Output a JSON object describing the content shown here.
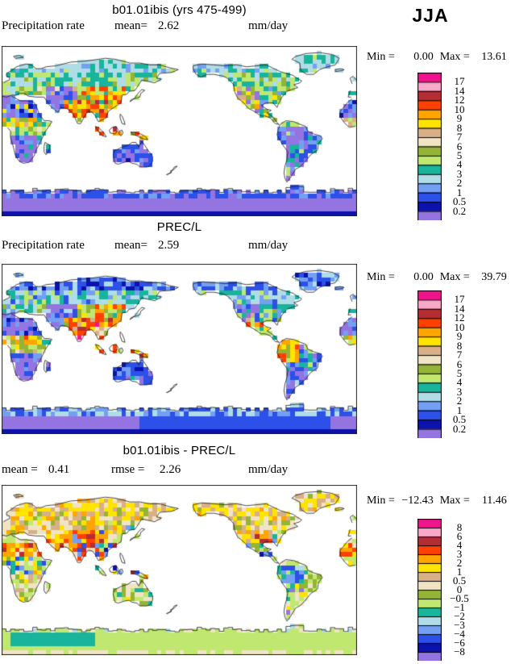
{
  "season_label": "JJA",
  "panels": [
    {
      "title": "b01.01ibis (yrs 475-499)",
      "var_label": "Precipitation rate",
      "mean_label": "mean=",
      "mean_value": "2.62",
      "units": "mm/day",
      "min_label": "Min =",
      "min_value": "0.00",
      "max_label": "Max =",
      "max_value": "13.61",
      "levels": [
        "17",
        "14",
        "12",
        "10",
        "9",
        "8",
        "7",
        "6",
        "5",
        "4",
        "3",
        "2",
        "1",
        "0.5",
        "0.2"
      ]
    },
    {
      "title": "PREC/L",
      "var_label": "Precipitation rate",
      "mean_label": "mean=",
      "mean_value": "2.59",
      "units": "mm/day",
      "min_label": "Min =",
      "min_value": "0.00",
      "max_label": "Max =",
      "max_value": "39.79",
      "levels": [
        "17",
        "14",
        "12",
        "10",
        "9",
        "8",
        "7",
        "6",
        "5",
        "4",
        "3",
        "2",
        "1",
        "0.5",
        "0.2"
      ]
    },
    {
      "title": "b01.01ibis - PREC/L",
      "mean_label": "mean =",
      "mean_value": "0.41",
      "rmse_label": "rmse =",
      "rmse_value": "2.26",
      "units": "mm/day",
      "min_label": "Min =",
      "min_value": "−12.43",
      "max_label": "Max =",
      "max_value": "11.46",
      "levels": [
        "8",
        "6",
        "4",
        "3",
        "2",
        "1",
        "0.5",
        "0",
        "−0.5",
        "−1",
        "−2",
        "−3",
        "−4",
        "−6",
        "−8"
      ]
    }
  ],
  "palette": {
    "names": [
      "magenta",
      "pink",
      "dark-red",
      "red-orange",
      "orange",
      "yellow",
      "tan",
      "beige",
      "olive-green",
      "light-green",
      "teal",
      "pale-blue",
      "cornflower-blue",
      "blue",
      "navy",
      "purple"
    ],
    "colors": [
      "#f0148c",
      "#f8a8c8",
      "#b42c34",
      "#ff4000",
      "#ffa400",
      "#ffe400",
      "#d8b088",
      "#f0e4c4",
      "#94b438",
      "#c0e870",
      "#18b49c",
      "#b0dce8",
      "#74a0f4",
      "#2c50e8",
      "#0c12ac",
      "#9474e0"
    ]
  },
  "chart_data": [
    {
      "type": "heatmap",
      "title": "b01.01ibis (yrs 475-499)",
      "subtitle": "Precipitation rate",
      "season": "JJA",
      "units": "mm/day",
      "mean": 2.62,
      "min": 0.0,
      "max": 13.61,
      "colorbar_levels": [
        17,
        14,
        12,
        10,
        9,
        8,
        7,
        6,
        5,
        4,
        3,
        2,
        1,
        0.5,
        0.2
      ],
      "colorbar_colors": [
        "#f0148c",
        "#f8a8c8",
        "#b42c34",
        "#ff4000",
        "#ffa400",
        "#ffe400",
        "#d8b088",
        "#f0e4c4",
        "#94b438",
        "#c0e870",
        "#18b49c",
        "#b0dce8",
        "#74a0f4",
        "#2c50e8",
        "#0c12ac",
        "#9474e0"
      ],
      "layout": "global lat-lon grid map, land cells only, ocean white, longitudes 0-360 (Pacific-centered), Antarctica filled"
    },
    {
      "type": "heatmap",
      "title": "PREC/L",
      "subtitle": "Precipitation rate",
      "season": "JJA",
      "units": "mm/day",
      "mean": 2.59,
      "min": 0.0,
      "max": 39.79,
      "colorbar_levels": [
        17,
        14,
        12,
        10,
        9,
        8,
        7,
        6,
        5,
        4,
        3,
        2,
        1,
        0.5,
        0.2
      ],
      "colorbar_colors": [
        "#f0148c",
        "#f8a8c8",
        "#b42c34",
        "#ff4000",
        "#ffa400",
        "#ffe400",
        "#d8b088",
        "#f0e4c4",
        "#94b438",
        "#c0e870",
        "#18b49c",
        "#b0dce8",
        "#74a0f4",
        "#2c50e8",
        "#0c12ac",
        "#9474e0"
      ],
      "layout": "global lat-lon grid map, land cells only, ocean white, longitudes 0-360 (Pacific-centered), Antarctica filled"
    },
    {
      "type": "heatmap",
      "title": "b01.01ibis - PREC/L",
      "season": "JJA",
      "units": "mm/day",
      "mean": 0.41,
      "rmse": 2.26,
      "min": -12.43,
      "max": 11.46,
      "colorbar_levels": [
        8,
        6,
        4,
        3,
        2,
        1,
        0.5,
        0,
        -0.5,
        -1,
        -2,
        -3,
        -4,
        -6,
        -8
      ],
      "colorbar_colors": [
        "#f0148c",
        "#f8a8c8",
        "#b42c34",
        "#ff4000",
        "#ffa400",
        "#ffe400",
        "#d8b088",
        "#f0e4c4",
        "#94b438",
        "#c0e870",
        "#18b49c",
        "#b0dce8",
        "#74a0f4",
        "#2c50e8",
        "#0c12ac",
        "#9474e0"
      ],
      "layout": "difference map (model minus obs), land cells only, ocean white"
    }
  ]
}
